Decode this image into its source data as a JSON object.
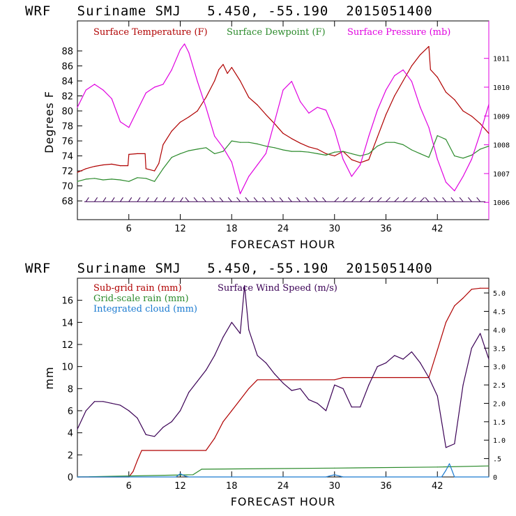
{
  "colors": {
    "temperature": "#b00000",
    "dewpoint": "#2a8a2a",
    "pressure": "#e000e0",
    "wind": "#3a0055",
    "subgrid": "#b00000",
    "gridscale": "#2a8a2a",
    "cloud": "#1a7ad0"
  },
  "chart_data": [
    {
      "type": "line",
      "title": "WRF   Suriname SMJ   5.450, -55.190  2015051400",
      "xlabel": "FORECAST HOUR",
      "ylabel": "Degrees F",
      "xlim": [
        0,
        48
      ],
      "ylim": [
        65.5,
        92
      ],
      "y2lim": [
        1005.4,
        1012.3
      ],
      "x_ticks": [
        "6",
        "12",
        "18",
        "24",
        "30",
        "36",
        "42"
      ],
      "y_ticks": [
        "68",
        "70",
        "72",
        "74",
        "76",
        "78",
        "80",
        "82",
        "84",
        "86",
        "88"
      ],
      "y2_ticks": [
        "1006",
        "1007",
        "1008",
        "1009",
        "1010",
        "1011"
      ],
      "legend": [
        "Surface Temperature (F)",
        "Surface Dewpoint (F)",
        "Surface Pressure (mb)"
      ],
      "series": [
        {
          "name": "Surface Temperature (F)",
          "axis": "left",
          "x": [
            0,
            1,
            2,
            3,
            4,
            5,
            5.9,
            6,
            7,
            7.9,
            8,
            9,
            9.5,
            10,
            11,
            12,
            13,
            14,
            15,
            16,
            16.5,
            17,
            17.5,
            18,
            19,
            20,
            21,
            22,
            23,
            24,
            25,
            26,
            27,
            28,
            29,
            30,
            31,
            32,
            33,
            34,
            35,
            36,
            37,
            38,
            39,
            40,
            41,
            41.2,
            42,
            42.5,
            43,
            44,
            45,
            46,
            47,
            48
          ],
          "values": [
            71.8,
            72.3,
            72.6,
            72.8,
            72.9,
            72.7,
            72.7,
            74.2,
            74.3,
            74.3,
            72.3,
            72.0,
            73.0,
            75.5,
            77.3,
            78.5,
            79.2,
            80.0,
            81.8,
            84.0,
            85.5,
            86.2,
            85.0,
            85.8,
            84.0,
            81.8,
            80.8,
            79.5,
            78.3,
            77.0,
            76.3,
            75.7,
            75.2,
            74.9,
            74.3,
            74.0,
            74.6,
            73.5,
            73.1,
            73.5,
            76.5,
            79.5,
            82.0,
            84.0,
            86.0,
            87.5,
            88.6,
            85.5,
            84.5,
            83.5,
            82.5,
            81.5,
            80.0,
            79.3,
            78.3,
            77.0
          ]
        },
        {
          "name": "Surface Dewpoint (F)",
          "axis": "left",
          "x": [
            0,
            1,
            2,
            3,
            4,
            5,
            6,
            7,
            8,
            9,
            10,
            11,
            12,
            13,
            14,
            15,
            16,
            17,
            18,
            19,
            20,
            21,
            22,
            23,
            24,
            25,
            26,
            27,
            28,
            29,
            30,
            31,
            32,
            33,
            34,
            35,
            36,
            37,
            38,
            39,
            40,
            41,
            42,
            43,
            44,
            45,
            46,
            47,
            48
          ],
          "values": [
            70.6,
            70.9,
            71.0,
            70.8,
            70.9,
            70.8,
            70.6,
            71.1,
            71.0,
            70.6,
            72.3,
            73.8,
            74.3,
            74.7,
            74.9,
            75.1,
            74.3,
            74.6,
            76.0,
            75.8,
            75.8,
            75.6,
            75.3,
            75.1,
            74.8,
            74.6,
            74.6,
            74.5,
            74.3,
            74.1,
            74.5,
            74.6,
            74.3,
            74.0,
            74.3,
            75.3,
            75.8,
            75.8,
            75.5,
            74.8,
            74.3,
            73.8,
            76.7,
            76.2,
            74.0,
            73.7,
            74.1,
            74.9,
            75.3
          ]
        },
        {
          "name": "Surface Pressure (mb)",
          "axis": "right",
          "x": [
            0,
            1,
            2,
            3,
            4,
            5,
            6,
            7,
            8,
            9,
            10,
            11,
            12,
            12.5,
            13,
            14,
            15,
            16,
            17,
            18,
            19,
            20,
            21,
            22,
            23,
            24,
            25,
            26,
            27,
            28,
            29,
            30,
            31,
            32,
            33,
            34,
            35,
            36,
            37,
            38,
            39,
            40,
            41,
            42,
            43,
            44,
            45,
            46,
            47,
            48
          ],
          "values": [
            1009.3,
            1009.9,
            1010.1,
            1009.9,
            1009.6,
            1008.8,
            1008.6,
            1009.2,
            1009.8,
            1010.0,
            1010.1,
            1010.6,
            1011.3,
            1011.5,
            1011.2,
            1010.2,
            1009.3,
            1008.3,
            1007.9,
            1007.4,
            1006.3,
            1006.9,
            1007.3,
            1007.7,
            1008.8,
            1009.9,
            1010.2,
            1009.5,
            1009.1,
            1009.3,
            1009.2,
            1008.5,
            1007.5,
            1006.9,
            1007.3,
            1008.3,
            1009.2,
            1009.9,
            1010.4,
            1010.6,
            1010.2,
            1009.3,
            1008.6,
            1007.5,
            1006.7,
            1006.4,
            1006.9,
            1007.5,
            1008.4,
            1009.4
          ]
        }
      ],
      "wind_barbs": "Surface wind barbs plotted along 68 F line, hourly"
    },
    {
      "type": "line",
      "title": "WRF   Suriname SMJ   5.450, -55.190  2015051400",
      "xlabel": "FORECAST HOUR",
      "ylabel": "mm",
      "xlim": [
        0,
        48
      ],
      "ylim": [
        0,
        18
      ],
      "y2lim": [
        0,
        5.4
      ],
      "x_ticks": [
        "6",
        "12",
        "18",
        "24",
        "30",
        "36",
        "42"
      ],
      "y_ticks": [
        "0",
        "2",
        "4",
        "6",
        "8",
        "10",
        "12",
        "14",
        "16"
      ],
      "y2_ticks": [
        "0",
        ".5",
        "1.0",
        "1.5",
        "2.0",
        "2.5",
        "3.0",
        "3.5",
        "4.0",
        "4.5",
        "5.0"
      ],
      "legend": [
        "Sub-grid rain (mm)",
        "Surface Wind Speed (m/s)",
        "Grid-scale rain (mm)",
        "Integrated cloud (mm)"
      ],
      "series": [
        {
          "name": "Sub-grid rain (mm)",
          "axis": "left",
          "x": [
            0,
            6,
            6.5,
            7,
            7.5,
            15,
            16,
            17,
            18,
            19,
            20,
            21,
            30,
            31,
            41,
            42,
            43,
            44,
            45,
            46,
            47,
            48
          ],
          "values": [
            0,
            0,
            0.5,
            1.5,
            2.4,
            2.4,
            3.5,
            5.0,
            6.0,
            7.0,
            8.0,
            8.8,
            8.8,
            9.0,
            9.0,
            11.5,
            14.0,
            15.5,
            16.2,
            17.0,
            17.1,
            17.1
          ]
        },
        {
          "name": "Grid-scale rain (mm)",
          "axis": "left",
          "x": [
            0,
            13.5,
            14.5,
            30,
            42,
            48
          ],
          "values": [
            0,
            0.2,
            0.7,
            0.8,
            0.9,
            1.0
          ]
        },
        {
          "name": "Integrated cloud (mm)",
          "axis": "left",
          "x": [
            0,
            11.5,
            12,
            12.5,
            13,
            29,
            30,
            31,
            42.5,
            43,
            43.4,
            44,
            48
          ],
          "values": [
            0,
            0,
            0.3,
            0.1,
            0,
            0,
            0.2,
            0,
            0,
            0.6,
            1.2,
            0,
            0
          ]
        },
        {
          "name": "Surface Wind Speed (m/s)",
          "axis": "right",
          "x": [
            0,
            1,
            2,
            3,
            4,
            5,
            6,
            7,
            8,
            9,
            10,
            11,
            12,
            13,
            14,
            15,
            16,
            17,
            18,
            19,
            19.5,
            20,
            21,
            22,
            23,
            24,
            25,
            26,
            27,
            28,
            29,
            30,
            31,
            32,
            33,
            34,
            35,
            36,
            37,
            38,
            39,
            40,
            41,
            42,
            43,
            44,
            45,
            46,
            47,
            48
          ],
          "values": [
            1.3,
            1.8,
            2.05,
            2.05,
            2.0,
            1.95,
            1.8,
            1.6,
            1.15,
            1.1,
            1.35,
            1.5,
            1.8,
            2.3,
            2.6,
            2.9,
            3.3,
            3.8,
            4.2,
            3.9,
            5.2,
            4.0,
            3.3,
            3.1,
            2.8,
            2.55,
            2.35,
            2.4,
            2.1,
            2.0,
            1.8,
            2.5,
            2.4,
            1.9,
            1.9,
            2.5,
            3.0,
            3.1,
            3.3,
            3.2,
            3.4,
            3.1,
            2.7,
            2.2,
            0.8,
            0.9,
            2.5,
            3.5,
            3.9,
            3.2
          ]
        }
      ]
    }
  ]
}
